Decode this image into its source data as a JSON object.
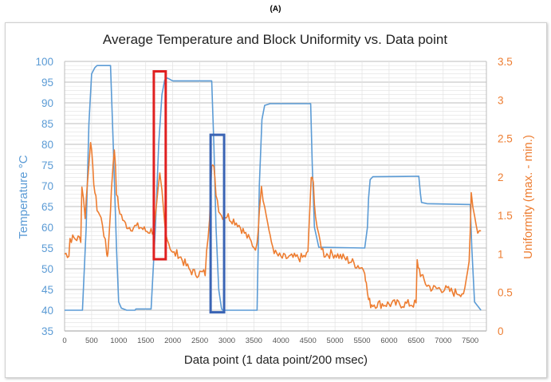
{
  "panel_label": "(A)",
  "chart_data": {
    "type": "line",
    "title": "Average Temperature and Block Uniformity vs. Data point",
    "xlabel": "Data point (1 data point/200 msec)",
    "ylabel": "Temperature °C",
    "y2label": "Uniformity (max. - min.)",
    "xlim": [
      0,
      7800
    ],
    "ylim": [
      35,
      100
    ],
    "y2lim": [
      0,
      3.5
    ],
    "x_ticks": [
      0,
      500,
      1000,
      1500,
      2000,
      2500,
      3000,
      3500,
      4000,
      4500,
      5000,
      5500,
      6000,
      6500,
      7000,
      7500
    ],
    "y_ticks": [
      35,
      40,
      45,
      50,
      55,
      60,
      65,
      70,
      75,
      80,
      85,
      90,
      95,
      100
    ],
    "y2_ticks": [
      0,
      0.5,
      1,
      1.5,
      2,
      2.5,
      3,
      3.5
    ],
    "y2_tick_labels": [
      "0",
      "0.5",
      "1",
      "1.5",
      "2",
      "2.5",
      "3",
      "3.5"
    ],
    "grid": true,
    "colors": {
      "temperature": "#5b9bd5",
      "uniformity": "#ed7d31",
      "red_box": "#e02020",
      "blue_box": "#3a64b4",
      "text_blue": "#5b9bd5",
      "text_orange": "#ed7d31"
    },
    "series": [
      {
        "name": "Average Temperature",
        "axis": "left",
        "x": [
          0,
          330,
          400,
          450,
          500,
          560,
          600,
          850,
          900,
          960,
          1000,
          1050,
          1150,
          1300,
          1320,
          1600,
          1680,
          1740,
          1800,
          1850,
          1900,
          2000,
          2720,
          2760,
          2800,
          2850,
          2900,
          2920,
          3000,
          3560,
          3600,
          3650,
          3700,
          3800,
          4550,
          4580,
          4620,
          4700,
          5550,
          5600,
          5620,
          5650,
          5700,
          6550,
          6580,
          6600,
          6700,
          7500,
          7530,
          7580,
          7700
        ],
        "y": [
          40,
          40,
          60,
          85,
          97,
          98.5,
          99,
          99,
          80,
          55,
          42,
          40.5,
          40,
          40,
          40.3,
          40.3,
          60,
          80,
          92,
          95.5,
          96,
          95.3,
          95.3,
          80,
          60,
          45,
          40.5,
          40,
          40,
          40,
          70,
          86,
          89.4,
          89.8,
          89.8,
          75,
          60,
          55.2,
          55,
          60,
          67,
          71.5,
          72.2,
          72.3,
          68,
          66,
          65.7,
          65.5,
          55,
          42,
          40
        ]
      },
      {
        "name": "Block Uniformity",
        "axis": "right",
        "x": [
          0,
          80,
          100,
          300,
          320,
          380,
          420,
          480,
          520,
          560,
          600,
          700,
          780,
          800,
          850,
          880,
          920,
          960,
          1000,
          1050,
          1100,
          1200,
          1300,
          1400,
          1500,
          1650,
          1700,
          1760,
          1800,
          1850,
          1900,
          1950,
          2000,
          2100,
          2200,
          2300,
          2400,
          2600,
          2680,
          2720,
          2760,
          2800,
          2850,
          2900,
          2950,
          3000,
          3100,
          3200,
          3300,
          3400,
          3500,
          3560,
          3600,
          3640,
          3700,
          3760,
          3800,
          3900,
          4000,
          4200,
          4400,
          4500,
          4560,
          4600,
          4640,
          4700,
          4800,
          5000,
          5300,
          5550,
          5580,
          5620,
          5660,
          5700,
          5900,
          6200,
          6500,
          6520,
          6560,
          6600,
          6700,
          6800,
          7000,
          7200,
          7400,
          7480,
          7520,
          7580,
          7640,
          7700
        ],
        "y": [
          1.0,
          1.0,
          1.2,
          1.2,
          1.9,
          1.5,
          1.9,
          2.5,
          2.1,
          1.8,
          1.6,
          1.4,
          1.0,
          1.0,
          1.6,
          2.0,
          2.4,
          1.8,
          1.6,
          1.5,
          1.4,
          1.35,
          1.35,
          1.35,
          1.3,
          1.3,
          1.6,
          2.0,
          1.8,
          1.4,
          1.2,
          1.1,
          1.0,
          1.0,
          0.9,
          0.8,
          0.75,
          0.75,
          1.5,
          2.2,
          2.1,
          1.8,
          1.6,
          1.5,
          1.5,
          1.5,
          1.45,
          1.4,
          1.3,
          1.2,
          1.1,
          1.1,
          1.6,
          1.9,
          1.6,
          1.4,
          1.2,
          1.0,
          0.95,
          0.95,
          0.95,
          1.0,
          2.0,
          1.9,
          1.5,
          1.2,
          1.0,
          1.0,
          0.9,
          0.8,
          0.6,
          0.4,
          0.35,
          0.35,
          0.35,
          0.35,
          0.35,
          0.9,
          0.8,
          0.7,
          0.6,
          0.55,
          0.55,
          0.5,
          0.5,
          0.9,
          1.8,
          1.5,
          1.3,
          1.3
        ]
      }
    ],
    "annotations": [
      {
        "type": "box",
        "color": "red",
        "x": [
          1650,
          1870
        ],
        "y_left": [
          52.3,
          97.6
        ]
      },
      {
        "type": "box",
        "color": "blue",
        "x": [
          2700,
          2950
        ],
        "y_left": [
          39.5,
          82.3
        ]
      }
    ]
  }
}
